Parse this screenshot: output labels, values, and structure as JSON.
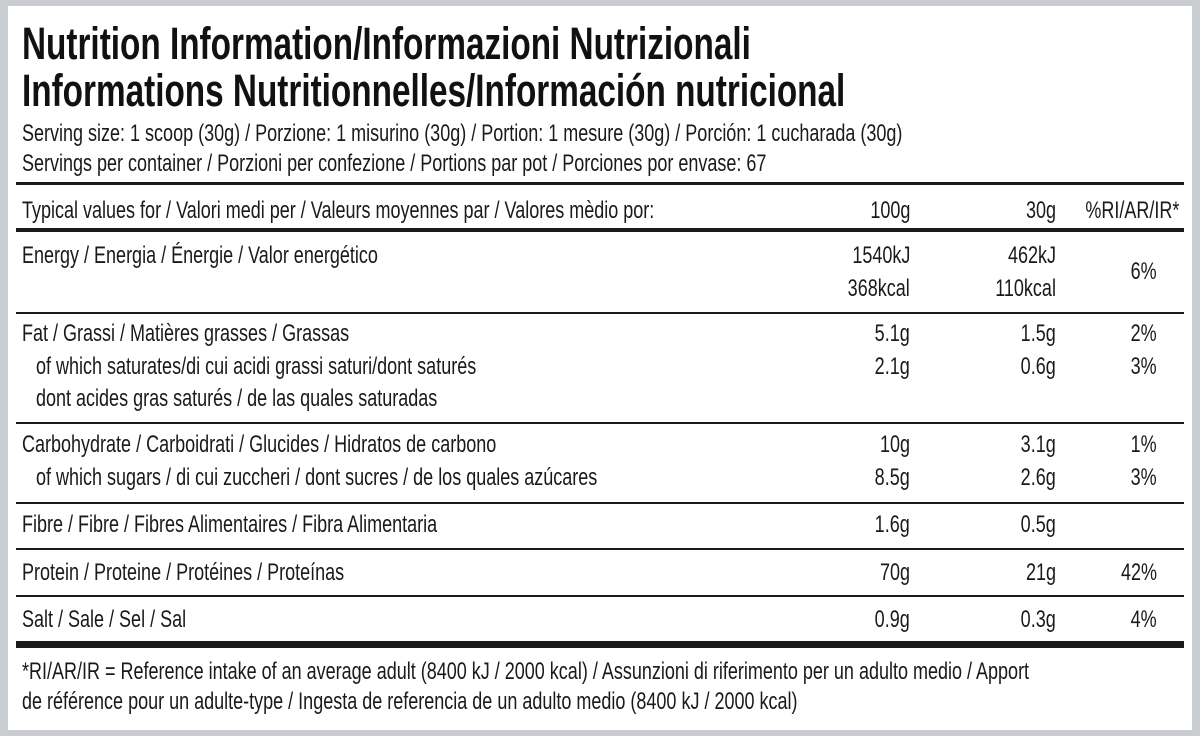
{
  "header": {
    "title_lines": [
      "Nutrition Information/Informazioni Nutrizionali",
      "Informations Nutritionnelles/Información nutricional"
    ],
    "serving_lines": [
      "Serving size: 1 scoop (30g) / Porzione: 1 misurino (30g) / Portion: 1 mesure (30g) / Porción: 1 cucharada (30g)",
      "Servings per container / Porzioni per confezione / Portions par pot / Porciones por envase: 67"
    ]
  },
  "table": {
    "columns": [
      "Typical values for / Valori medi per / Valeurs moyennes par / Valores mèdio por:",
      "100g",
      "30g",
      "%RI/AR/IR*"
    ],
    "sections": [
      {
        "rows": [
          {
            "label": [
              "Energy / Energia / Énergie / Valor energético"
            ],
            "per_100g": [
              "1540kJ",
              "368kcal"
            ],
            "per_30g": [
              "462kJ",
              "110kcal"
            ],
            "ri": "6%"
          }
        ]
      },
      {
        "rows": [
          {
            "label": [
              "Fat / Grassi / Matières grasses / Grassas"
            ],
            "per_100g": [
              "5.1g"
            ],
            "per_30g": [
              "1.5g"
            ],
            "ri": "2%"
          },
          {
            "label": [
              "of which saturates/di cui acidi grassi saturi/dont saturés",
              "dont acides gras saturés / de las quales saturadas"
            ],
            "per_100g": [
              "2.1g"
            ],
            "per_30g": [
              "0.6g"
            ],
            "ri": "3%"
          }
        ]
      },
      {
        "rows": [
          {
            "label": [
              "Carbohydrate / Carboidrati / Glucides / Hidratos de carbono"
            ],
            "per_100g": [
              "10g"
            ],
            "per_30g": [
              "3.1g"
            ],
            "ri": "1%"
          },
          {
            "label": [
              "of which sugars / di cui zuccheri / dont sucres / de los quales azúcares"
            ],
            "per_100g": [
              "8.5g"
            ],
            "per_30g": [
              "2.6g"
            ],
            "ri": "3%"
          }
        ]
      },
      {
        "rows": [
          {
            "label": [
              "Fibre / Fibre / Fibres Alimentaires / Fibra Alimentaria"
            ],
            "per_100g": [
              "1.6g"
            ],
            "per_30g": [
              "0.5g"
            ]
          }
        ]
      },
      {
        "rows": [
          {
            "label": [
              "Protein / Proteine / Protéines / Proteínas"
            ],
            "per_100g": [
              "70g"
            ],
            "per_30g": [
              "21g"
            ],
            "ri": "42%"
          }
        ]
      },
      {
        "rows": [
          {
            "label": [
              "Salt / Sale / Sel / Sal"
            ],
            "per_100g": [
              "0.9g"
            ],
            "per_30g": [
              "0.3g"
            ],
            "ri": "4%"
          }
        ]
      }
    ]
  },
  "footnote": [
    "*RI/AR/IR = Reference intake of an average adult (8400 kJ / 2000 kcal)  / Assunzioni di riferimento per un adulto medio / Apport",
    "de référence pour un adulte-type / Ingesta de referencia de un adulto medio (8400 kJ / 2000 kcal)"
  ]
}
